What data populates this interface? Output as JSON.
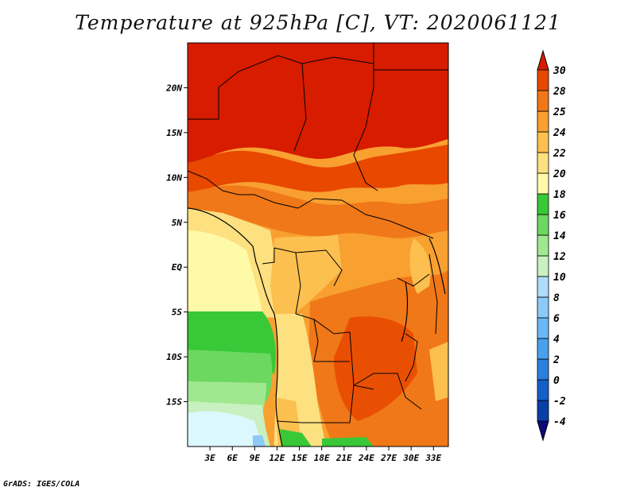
{
  "title": "Temperature at 925hPa [C], VT: 2020061121",
  "footer": "GrADS: IGES/COLA",
  "map": {
    "lon_range": [
      0,
      35
    ],
    "lat_range": [
      -20,
      25
    ],
    "lon_ticks": [
      "3E",
      "6E",
      "9E",
      "12E",
      "15E",
      "18E",
      "21E",
      "24E",
      "27E",
      "30E",
      "33E"
    ],
    "lat_ticks": [
      "20N",
      "15N",
      "10N",
      "5N",
      "EQ",
      "5S",
      "10S",
      "15S"
    ]
  },
  "colorbar": {
    "levels": [
      "-4",
      "-2",
      "0",
      "2",
      "4",
      "6",
      "8",
      "10",
      "12",
      "14",
      "16",
      "18",
      "20",
      "22",
      "24",
      "25",
      "28",
      "30"
    ],
    "colors": [
      "#0a0a7a",
      "#0a3fa8",
      "#1460c8",
      "#2a80dc",
      "#4aa0ec",
      "#6ab8f4",
      "#8ccbf8",
      "#b0dcfb",
      "#c8f0c0",
      "#a0e890",
      "#6cd860",
      "#38c838",
      "#fffaa8",
      "#fde080",
      "#fcc050",
      "#f8a030",
      "#f07818",
      "#e84800",
      "#d81c00"
    ]
  }
}
